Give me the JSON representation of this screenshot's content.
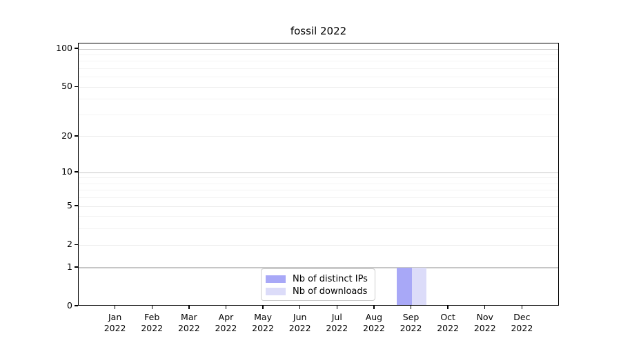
{
  "chart_data": {
    "type": "bar",
    "title": "fossil 2022",
    "categories": [
      "Jan 2022",
      "Feb 2022",
      "Mar 2022",
      "Apr 2022",
      "May 2022",
      "Jun 2022",
      "Jul 2022",
      "Aug 2022",
      "Sep 2022",
      "Oct 2022",
      "Nov 2022",
      "Dec 2022"
    ],
    "series": [
      {
        "name": "Nb of distinct IPs",
        "color": "#a8a8f7",
        "values": [
          0,
          0,
          0,
          0,
          0,
          0,
          0,
          0,
          1,
          0,
          0,
          0
        ]
      },
      {
        "name": "Nb of downloads",
        "color": "#dcdcf9",
        "values": [
          0,
          0,
          0,
          0,
          0,
          0,
          0,
          0,
          1,
          0,
          0,
          0
        ]
      }
    ],
    "xlabel": "",
    "ylabel": "",
    "yscale": "log1p",
    "ylim": [
      0,
      110
    ],
    "yticks": [
      0,
      1,
      2,
      5,
      10,
      20,
      50,
      100
    ],
    "major_gridlines": [
      1,
      10,
      100
    ],
    "mid_gridlines": [
      2,
      5,
      20,
      50
    ],
    "minor_gridlines": [
      3,
      4,
      6,
      7,
      8,
      9,
      30,
      40,
      60,
      70,
      80,
      90
    ],
    "grid": true,
    "legend_position": "lower center",
    "colors": {
      "axis": "#000000",
      "grid_major": "#c6c6c6",
      "grid_mid": "#ececec",
      "grid_minor": "#f3f3f3",
      "background": "#ffffff"
    }
  }
}
